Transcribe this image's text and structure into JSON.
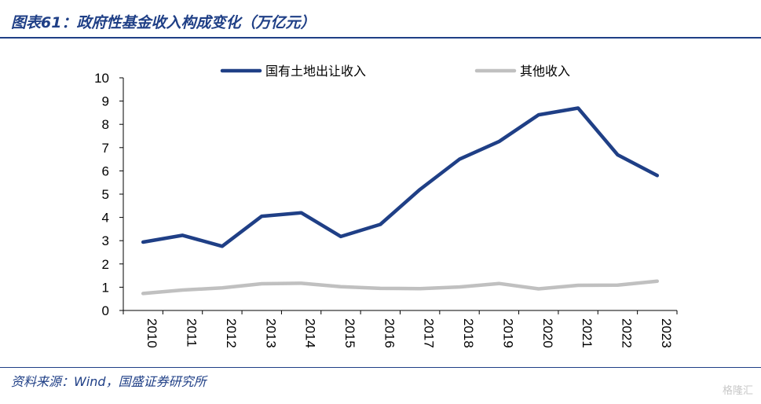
{
  "header": {
    "title": "图表61：政府性基金收入构成变化（万亿元）"
  },
  "footer": {
    "source": "资料来源：Wind，国盛证券研究所",
    "watermark": "格隆汇"
  },
  "chart_data": {
    "type": "line",
    "x": [
      "2010",
      "2011",
      "2012",
      "2013",
      "2014",
      "2015",
      "2016",
      "2017",
      "2018",
      "2019",
      "2020",
      "2021",
      "2022",
      "2023"
    ],
    "series": [
      {
        "name": "国有土地出让收入",
        "color": "#1f3f86",
        "values": [
          2.94,
          3.23,
          2.76,
          4.05,
          4.2,
          3.18,
          3.7,
          5.2,
          6.5,
          7.26,
          8.41,
          8.7,
          6.69,
          5.8
        ]
      },
      {
        "name": "其他收入",
        "color": "#c0c0c0",
        "values": [
          0.73,
          0.88,
          0.97,
          1.15,
          1.17,
          1.02,
          0.95,
          0.94,
          1.01,
          1.16,
          0.93,
          1.08,
          1.09,
          1.26
        ]
      }
    ],
    "yticks": [
      0,
      1,
      2,
      3,
      4,
      5,
      6,
      7,
      8,
      9,
      10
    ],
    "ylim": [
      0,
      10
    ],
    "legend_position": "top",
    "grid": false
  }
}
